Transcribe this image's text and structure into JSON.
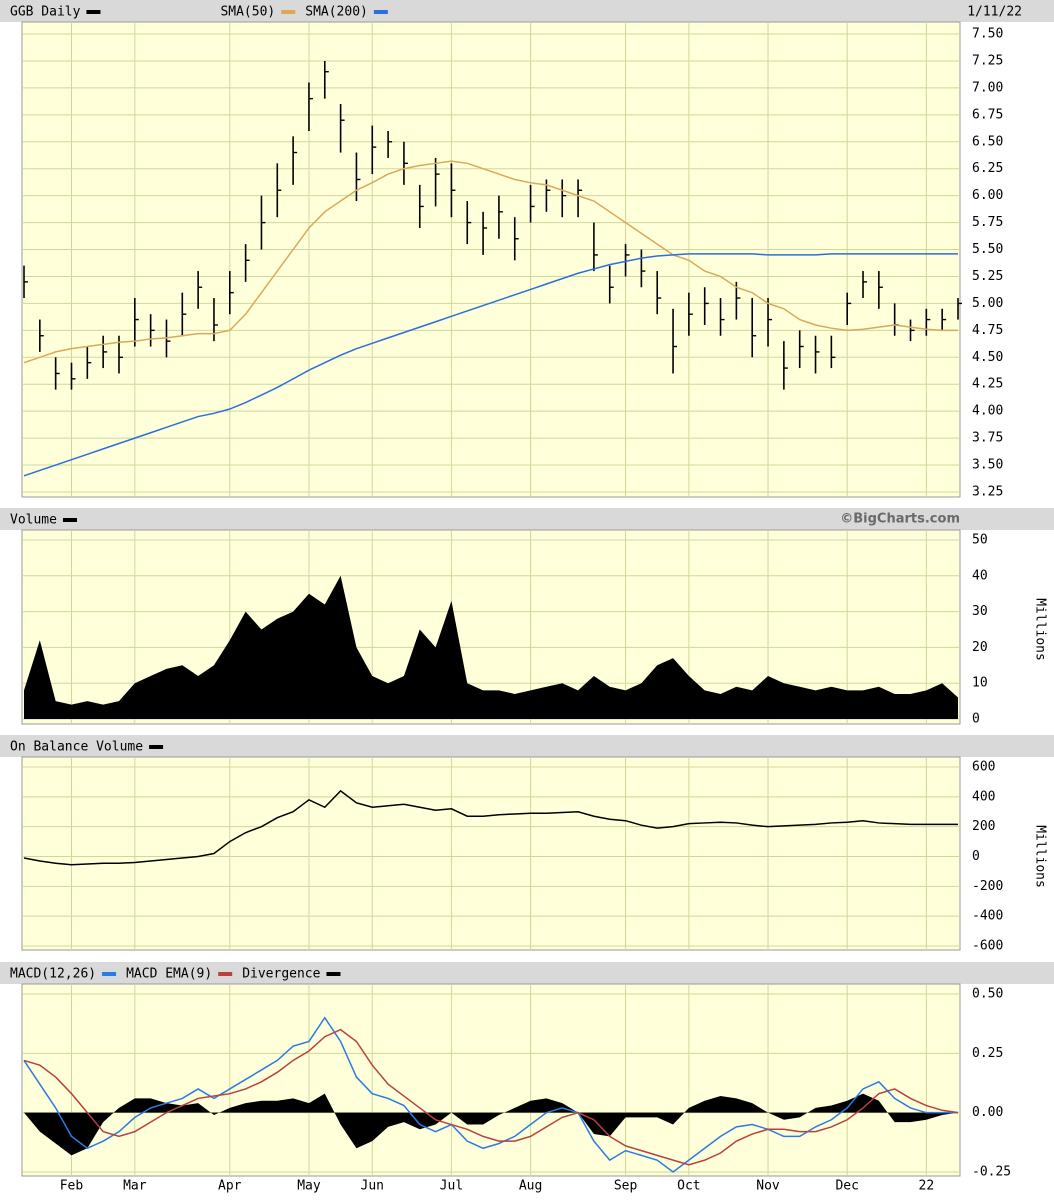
{
  "chart_data": [
    {
      "type": "stock",
      "date": "1/11/22",
      "ylim": [
        3.25,
        7.5
      ],
      "yticks": [
        3.25,
        {
          "value": 3.5,
          "label": "3.50"
        },
        3.75,
        {
          "value": 4,
          "label": "4.00"
        },
        4.25,
        {
          "value": 4.5,
          "label": "4.50"
        },
        4.75,
        {
          "value": 5,
          "label": "5.00"
        },
        5.25,
        {
          "value": 5.5,
          "label": "5.50"
        },
        5.75,
        {
          "value": 6,
          "label": "6.00"
        },
        6.25,
        {
          "value": 6.5,
          "label": "6.50"
        },
        6.75,
        {
          "value": 7,
          "label": "7.00"
        },
        7.25,
        {
          "value": 7.5,
          "label": "7.50"
        }
      ],
      "grid": true,
      "series": [
        {
          "name": "GGB Daily",
          "type": "hlc",
          "color": "#000000",
          "high": [
            5.35,
            4.85,
            4.5,
            4.45,
            4.6,
            4.7,
            4.7,
            5.05,
            4.9,
            4.85,
            5.1,
            5.3,
            5.05,
            5.3,
            5.55,
            6.0,
            6.3,
            6.55,
            7.05,
            7.25,
            6.85,
            6.4,
            6.65,
            6.6,
            6.5,
            6.1,
            6.35,
            6.3,
            5.95,
            5.85,
            6.0,
            5.8,
            6.1,
            6.15,
            6.15,
            6.15,
            5.75,
            5.35,
            5.55,
            5.5,
            5.3,
            4.95,
            5.1,
            5.15,
            5.05,
            5.2,
            5.05,
            5.05,
            4.65,
            4.75,
            4.7,
            4.7,
            5.1,
            5.3,
            5.3,
            5.0,
            4.85,
            4.95,
            4.95,
            5.05
          ],
          "low": [
            5.05,
            4.55,
            4.2,
            4.2,
            4.3,
            4.4,
            4.35,
            4.6,
            4.6,
            4.5,
            4.7,
            4.95,
            4.65,
            4.9,
            5.2,
            5.5,
            5.8,
            6.1,
            6.6,
            6.9,
            6.4,
            5.95,
            6.2,
            6.35,
            6.1,
            5.7,
            5.9,
            5.8,
            5.55,
            5.45,
            5.6,
            5.4,
            5.75,
            5.85,
            5.8,
            5.8,
            5.3,
            5.0,
            5.25,
            5.15,
            4.9,
            4.35,
            4.7,
            4.8,
            4.7,
            4.85,
            4.5,
            4.6,
            4.2,
            4.4,
            4.35,
            4.4,
            4.8,
            5.05,
            4.95,
            4.7,
            4.65,
            4.7,
            4.75,
            4.85
          ],
          "close": [
            5.2,
            4.7,
            4.35,
            4.3,
            4.45,
            4.55,
            4.5,
            4.85,
            4.75,
            4.65,
            4.9,
            5.15,
            4.8,
            5.1,
            5.4,
            5.75,
            6.05,
            6.4,
            6.9,
            7.15,
            6.7,
            6.15,
            6.45,
            6.5,
            6.3,
            5.9,
            6.2,
            6.05,
            5.75,
            5.7,
            5.85,
            5.6,
            5.9,
            6.05,
            6.0,
            6.05,
            5.45,
            5.15,
            5.45,
            5.3,
            5.05,
            4.6,
            4.9,
            5.0,
            4.85,
            5.05,
            4.7,
            4.85,
            4.4,
            4.6,
            4.55,
            4.5,
            5.0,
            5.2,
            5.15,
            4.8,
            4.75,
            4.85,
            4.85,
            5.0
          ]
        },
        {
          "name": "SMA(50)",
          "type": "line",
          "color": "#d9a85a",
          "values": [
            4.45,
            4.5,
            4.55,
            4.58,
            4.6,
            4.62,
            4.64,
            4.65,
            4.67,
            4.68,
            4.7,
            4.72,
            4.72,
            4.75,
            4.9,
            5.1,
            5.3,
            5.5,
            5.7,
            5.85,
            5.95,
            6.05,
            6.12,
            6.2,
            6.25,
            6.28,
            6.3,
            6.32,
            6.3,
            6.25,
            6.2,
            6.15,
            6.12,
            6.1,
            6.05,
            6.0,
            5.95,
            5.85,
            5.75,
            5.65,
            5.55,
            5.45,
            5.4,
            5.3,
            5.25,
            5.15,
            5.1,
            5.0,
            4.95,
            4.85,
            4.8,
            4.77,
            4.75,
            4.76,
            4.78,
            4.8,
            4.78,
            4.76,
            4.75,
            4.75
          ]
        },
        {
          "name": "SMA(200)",
          "type": "line",
          "color": "#2a6fdb",
          "values": [
            3.4,
            3.45,
            3.5,
            3.55,
            3.6,
            3.65,
            3.7,
            3.75,
            3.8,
            3.85,
            3.9,
            3.95,
            3.98,
            4.02,
            4.08,
            4.15,
            4.22,
            4.3,
            4.38,
            4.45,
            4.52,
            4.58,
            4.63,
            4.68,
            4.73,
            4.78,
            4.83,
            4.88,
            4.93,
            4.98,
            5.03,
            5.08,
            5.13,
            5.18,
            5.23,
            5.28,
            5.32,
            5.36,
            5.39,
            5.42,
            5.44,
            5.45,
            5.46,
            5.46,
            5.46,
            5.46,
            5.46,
            5.45,
            5.45,
            5.45,
            5.45,
            5.46,
            5.46,
            5.46,
            5.46,
            5.46,
            5.46,
            5.46,
            5.46,
            5.46
          ]
        }
      ]
    },
    {
      "type": "area",
      "credit": "©BigCharts.com",
      "y_label": "Millions",
      "ylim": [
        0,
        50
      ],
      "yticks": [
        0,
        10,
        20,
        30,
        40,
        50
      ],
      "grid": true,
      "series": [
        {
          "name": "Volume",
          "color": "#000000",
          "values": [
            8,
            22,
            5,
            4,
            5,
            4,
            5,
            10,
            12,
            14,
            15,
            12,
            15,
            22,
            30,
            25,
            28,
            30,
            35,
            32,
            40,
            20,
            12,
            10,
            12,
            25,
            20,
            33,
            10,
            8,
            8,
            7,
            8,
            9,
            10,
            8,
            12,
            9,
            8,
            10,
            15,
            17,
            12,
            8,
            7,
            9,
            8,
            12,
            10,
            9,
            8,
            9,
            8,
            8,
            9,
            7,
            7,
            8,
            10,
            6
          ]
        }
      ]
    },
    {
      "type": "line",
      "y_label": "Millions",
      "ylim": [
        -600,
        600
      ],
      "yticks": [
        -600,
        -400,
        -200,
        0,
        200,
        400,
        600
      ],
      "grid": true,
      "series": [
        {
          "name": "On Balance Volume",
          "color": "#000000",
          "values": [
            -10,
            -30,
            -45,
            -55,
            -50,
            -45,
            -45,
            -40,
            -30,
            -20,
            -10,
            0,
            20,
            100,
            160,
            200,
            260,
            300,
            380,
            330,
            440,
            360,
            330,
            340,
            350,
            330,
            310,
            320,
            270,
            270,
            280,
            285,
            290,
            290,
            295,
            300,
            270,
            250,
            240,
            210,
            190,
            200,
            220,
            225,
            230,
            225,
            210,
            200,
            205,
            210,
            215,
            225,
            230,
            240,
            225,
            220,
            215,
            215,
            215,
            215
          ]
        }
      ]
    },
    {
      "type": "line",
      "ylim": [
        -0.25,
        0.5
      ],
      "yticks": [
        -0.25,
        {
          "value": 0,
          "label": "0.00"
        },
        0.25,
        {
          "value": 0.5,
          "label": "0.50"
        }
      ],
      "grid": true,
      "categories": [
        null,
        null,
        null,
        "Feb",
        null,
        null,
        null,
        "Mar",
        null,
        null,
        null,
        null,
        null,
        "Apr",
        null,
        null,
        null,
        null,
        "May",
        null,
        null,
        null,
        "Jun",
        null,
        null,
        null,
        null,
        "Jul",
        null,
        null,
        null,
        null,
        "Aug",
        null,
        null,
        null,
        null,
        null,
        "Sep",
        null,
        null,
        null,
        "Oct",
        null,
        null,
        null,
        null,
        "Nov",
        null,
        null,
        null,
        null,
        "Dec",
        null,
        null,
        null,
        null,
        "22",
        null,
        null
      ],
      "series": [
        {
          "name": "MACD(12,26)",
          "color": "#2a7be4",
          "values": [
            0.22,
            0.12,
            0.02,
            -0.1,
            -0.15,
            -0.12,
            -0.08,
            -0.02,
            0.02,
            0.04,
            0.06,
            0.1,
            0.06,
            0.1,
            0.14,
            0.18,
            0.22,
            0.28,
            0.3,
            0.4,
            0.3,
            0.15,
            0.08,
            0.06,
            0.03,
            -0.05,
            -0.08,
            -0.05,
            -0.12,
            -0.15,
            -0.13,
            -0.1,
            -0.05,
            0.0,
            0.02,
            0.0,
            -0.12,
            -0.2,
            -0.16,
            -0.18,
            -0.2,
            -0.25,
            -0.2,
            -0.15,
            -0.1,
            -0.06,
            -0.05,
            -0.07,
            -0.1,
            -0.1,
            -0.06,
            -0.03,
            0.02,
            0.1,
            0.13,
            0.06,
            0.02,
            0.0,
            0.0,
            0.0
          ]
        },
        {
          "name": "MACD EMA(9)",
          "color": "#b8413f",
          "values": [
            0.22,
            0.2,
            0.15,
            0.08,
            0.0,
            -0.08,
            -0.1,
            -0.08,
            -0.04,
            0.0,
            0.03,
            0.06,
            0.07,
            0.08,
            0.1,
            0.13,
            0.17,
            0.22,
            0.26,
            0.32,
            0.35,
            0.3,
            0.2,
            0.12,
            0.07,
            0.02,
            -0.03,
            -0.05,
            -0.07,
            -0.1,
            -0.12,
            -0.12,
            -0.1,
            -0.06,
            -0.02,
            0.0,
            -0.03,
            -0.1,
            -0.14,
            -0.16,
            -0.18,
            -0.2,
            -0.22,
            -0.2,
            -0.17,
            -0.12,
            -0.09,
            -0.07,
            -0.07,
            -0.08,
            -0.08,
            -0.06,
            -0.03,
            0.02,
            0.08,
            0.1,
            0.06,
            0.03,
            0.01,
            0.0
          ]
        },
        {
          "name": "Divergence",
          "type": "area",
          "color": "#000000",
          "values": [
            0,
            -0.08,
            -0.13,
            -0.18,
            -0.15,
            -0.04,
            0.02,
            0.06,
            0.06,
            0.04,
            0.03,
            0.04,
            -0.01,
            0.02,
            0.04,
            0.05,
            0.05,
            0.06,
            0.04,
            0.08,
            -0.05,
            -0.15,
            -0.12,
            -0.06,
            -0.04,
            -0.07,
            -0.05,
            0.0,
            -0.05,
            -0.05,
            -0.01,
            0.02,
            0.05,
            0.06,
            0.04,
            0.0,
            -0.09,
            -0.1,
            -0.02,
            -0.02,
            -0.02,
            -0.05,
            0.02,
            0.05,
            0.07,
            0.06,
            0.04,
            0.0,
            -0.03,
            -0.02,
            0.02,
            0.03,
            0.05,
            0.08,
            0.05,
            -0.04,
            -0.04,
            -0.03,
            -0.01,
            0.0
          ]
        }
      ]
    }
  ]
}
